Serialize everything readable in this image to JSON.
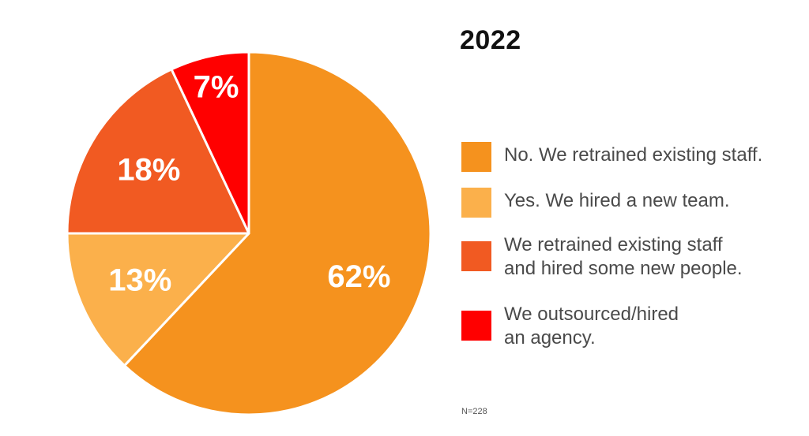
{
  "chart_data": {
    "type": "pie",
    "title": "2022",
    "note": "N=228",
    "start_angle_deg": 0,
    "direction": "clockwise",
    "slices": [
      {
        "label": "No. We retrained existing staff.",
        "value": 62,
        "display": "62%",
        "color": "#F5921E"
      },
      {
        "label": "Yes. We hired a new team.",
        "value": 13,
        "display": "13%",
        "color": "#FBB04B"
      },
      {
        "label": "We retrained existing staff\nand hired some new people.",
        "value": 18,
        "display": "18%",
        "color": "#F15A22"
      },
      {
        "label": "We outsourced/hired\nan agency.",
        "value": 7,
        "display": "7%",
        "color": "#FF0000"
      }
    ],
    "legend_position": "right"
  }
}
